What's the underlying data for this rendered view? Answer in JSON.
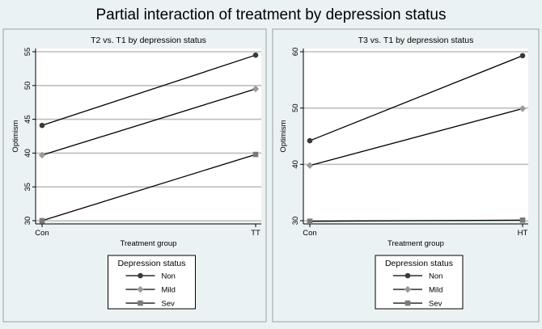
{
  "title": "Partial interaction of treatment by depression status",
  "legend_title": "Depression status",
  "colors": {
    "background": "#eaf2f3",
    "plot_area": "#ffffff",
    "gridline": "#bdbdbd",
    "axis": "#000000"
  },
  "chart_data": [
    {
      "type": "line",
      "title": "T2 vs. T1 by depression status",
      "xlabel": "Treatment group",
      "ylabel": "Optimism",
      "categories": [
        "Con",
        "TT"
      ],
      "ylim": [
        30,
        55
      ],
      "yticks": [
        30,
        35,
        40,
        45,
        50,
        55
      ],
      "grid": true,
      "legend_position": "bottom",
      "series": [
        {
          "name": "Non",
          "values": [
            44.1,
            54.5
          ],
          "color": "#3a3a3a",
          "marker": "circle"
        },
        {
          "name": "Mild",
          "values": [
            39.7,
            49.5
          ],
          "color": "#9a9a9a",
          "marker": "diamond"
        },
        {
          "name": "Sev",
          "values": [
            30.0,
            39.8
          ],
          "color": "#7a7a7a",
          "marker": "square"
        }
      ]
    },
    {
      "type": "line",
      "title": "T3 vs. T1 by depression status",
      "xlabel": "Treatment group",
      "ylabel": "Optimism",
      "categories": [
        "Con",
        "HT"
      ],
      "ylim": [
        30,
        60
      ],
      "yticks": [
        30,
        40,
        50,
        60
      ],
      "grid": true,
      "legend_position": "bottom",
      "series": [
        {
          "name": "Non",
          "values": [
            44.2,
            59.3
          ],
          "color": "#3a3a3a",
          "marker": "circle"
        },
        {
          "name": "Mild",
          "values": [
            39.8,
            49.9
          ],
          "color": "#9a9a9a",
          "marker": "diamond"
        },
        {
          "name": "Sev",
          "values": [
            29.9,
            30.1
          ],
          "color": "#7a7a7a",
          "marker": "square"
        }
      ]
    }
  ]
}
